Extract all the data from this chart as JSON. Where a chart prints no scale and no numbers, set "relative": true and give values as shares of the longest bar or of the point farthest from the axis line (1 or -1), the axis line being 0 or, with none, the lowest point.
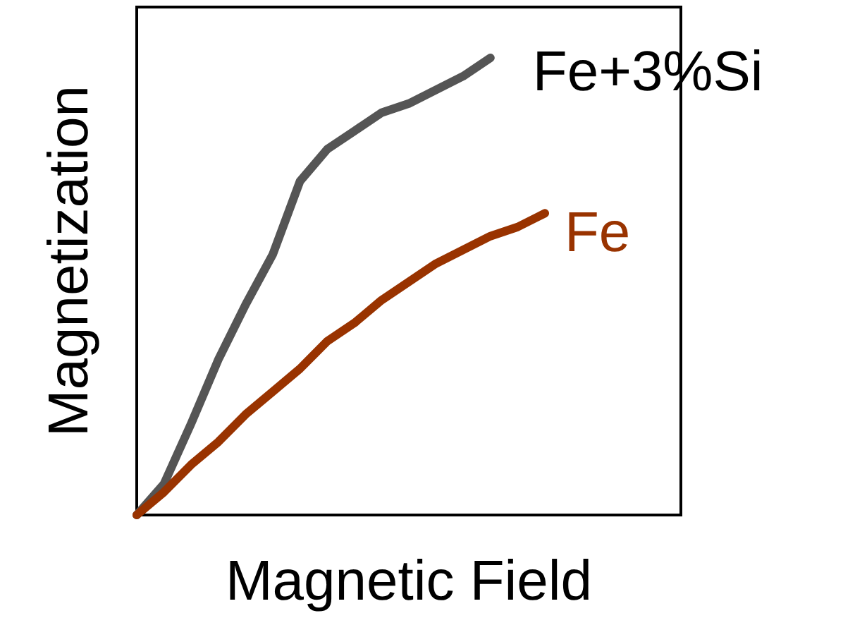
{
  "chart_data": {
    "type": "line",
    "relative": true,
    "xlabel": "Magnetic Field",
    "ylabel": "Magnetization",
    "categories": [
      null,
      null,
      null,
      null,
      null,
      null,
      null,
      null,
      null,
      null,
      null,
      null,
      null,
      null,
      null,
      null,
      null,
      null,
      null,
      null,
      null
    ],
    "series": [
      {
        "name": "Fe+3%Si",
        "color": "#555555",
        "values": [
          0,
          0.068,
          0.2,
          0.34,
          0.46,
          0.57,
          0.73,
          0.8,
          0.84,
          0.88,
          0.9,
          0.93,
          0.96,
          1,
          null,
          null,
          null,
          null,
          null,
          null,
          null
        ]
      },
      {
        "name": "Fe",
        "color": "#993300",
        "values": [
          0,
          0.05,
          0.11,
          0.16,
          0.22,
          0.27,
          0.32,
          0.38,
          0.42,
          0.47,
          0.51,
          0.55,
          0.58,
          0.61,
          0.63,
          0.66,
          null,
          null,
          null,
          null,
          null
        ]
      }
    ],
    "legend": false,
    "grid": false,
    "marker": "none",
    "line_style": "solid"
  }
}
